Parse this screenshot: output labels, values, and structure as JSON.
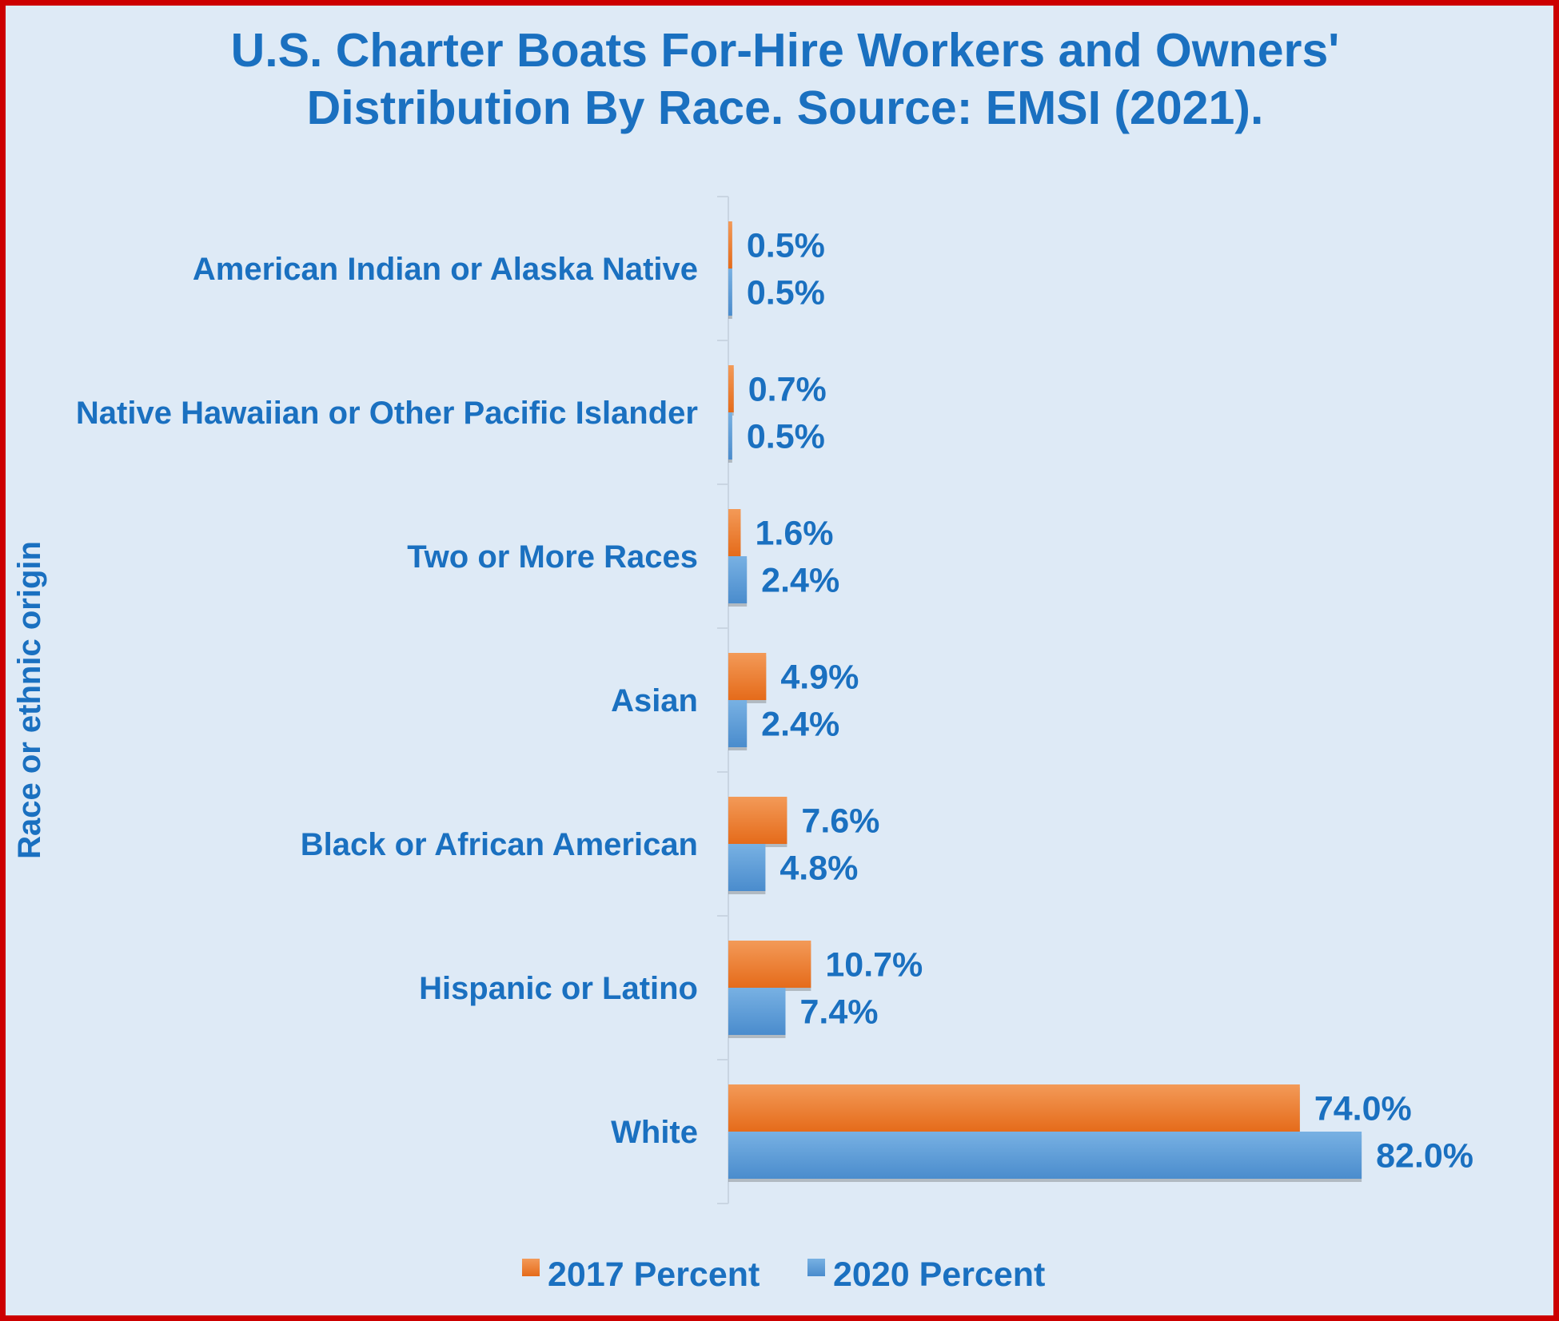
{
  "chart_data": {
    "type": "bar",
    "orientation": "horizontal",
    "title_lines": [
      "U.S. Charter Boats For-Hire Workers and Owners'",
      "Distribution By Race. Source: EMSI (2021)."
    ],
    "ylabel": "Race or ethnic origin",
    "xlabel": "",
    "categories": [
      "American Indian or Alaska Native",
      "Native Hawaiian or Other Pacific Islander",
      "Two or More Races",
      "Asian",
      "Black or African American",
      "Hispanic or Latino",
      "White"
    ],
    "series": [
      {
        "name": "2017 Percent",
        "color": "#ed7d31",
        "values": [
          0.5,
          0.7,
          1.6,
          4.9,
          7.6,
          10.7,
          74.0
        ],
        "labels": [
          "0.5%",
          "0.7%",
          "1.6%",
          "4.9%",
          "7.6%",
          "10.7%",
          "74.0%"
        ]
      },
      {
        "name": "2020 Percent",
        "color": "#5b9bd5",
        "values": [
          0.5,
          0.5,
          2.4,
          2.4,
          4.8,
          7.4,
          82.0
        ],
        "labels": [
          "0.5%",
          "0.5%",
          "2.4%",
          "2.4%",
          "4.8%",
          "7.4%",
          "82.0%"
        ]
      }
    ],
    "xlim": [
      0,
      100
    ],
    "grid": false,
    "legend_position": "bottom",
    "frame_color": "#cc0000",
    "background_color": "#deeaf6",
    "text_color": "#1a70c0"
  }
}
